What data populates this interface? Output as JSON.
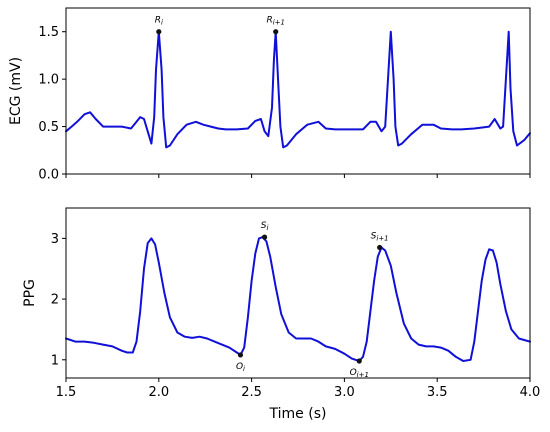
{
  "chart_data": [
    {
      "type": "line",
      "ylabel": "ECG (mV)",
      "xlim": [
        1.5,
        4.0
      ],
      "ylim": [
        0.0,
        1.75
      ],
      "yticks": [
        0.0,
        0.5,
        1.0,
        1.5
      ],
      "ytick_labels": [
        "0.0",
        "0.5",
        "1.0",
        "1.5"
      ],
      "xticks": [
        1.5,
        2.0,
        2.5,
        3.0,
        3.5,
        4.0
      ],
      "show_xtick_labels": false,
      "grid": false,
      "color": "#1010d8",
      "series": [
        {
          "x": [
            1.5,
            1.53,
            1.56,
            1.6,
            1.63,
            1.66,
            1.7,
            1.75,
            1.8,
            1.85,
            1.88,
            1.9,
            1.92,
            1.94,
            1.96,
            1.975,
            1.985,
            2.0,
            2.015,
            2.025,
            2.04,
            2.06,
            2.1,
            2.15,
            2.2,
            2.24,
            2.28,
            2.32,
            2.36,
            2.42,
            2.48,
            2.52,
            2.55,
            2.57,
            2.59,
            2.61,
            2.62,
            2.63,
            2.645,
            2.655,
            2.67,
            2.69,
            2.74,
            2.8,
            2.86,
            2.9,
            2.95,
            3.0,
            3.1,
            3.14,
            3.17,
            3.2,
            3.22,
            3.235,
            3.25,
            3.265,
            3.275,
            3.29,
            3.31,
            3.36,
            3.42,
            3.48,
            3.52,
            3.58,
            3.63,
            3.7,
            3.78,
            3.81,
            3.84,
            3.855,
            3.87,
            3.885,
            3.895,
            3.91,
            3.93,
            3.97,
            4.0
          ],
          "y": [
            0.45,
            0.5,
            0.55,
            0.63,
            0.65,
            0.58,
            0.5,
            0.5,
            0.5,
            0.48,
            0.55,
            0.6,
            0.58,
            0.45,
            0.32,
            0.6,
            1.1,
            1.5,
            1.1,
            0.6,
            0.28,
            0.3,
            0.42,
            0.52,
            0.55,
            0.52,
            0.5,
            0.48,
            0.47,
            0.47,
            0.48,
            0.56,
            0.58,
            0.45,
            0.4,
            0.7,
            1.2,
            1.5,
            0.9,
            0.5,
            0.28,
            0.3,
            0.42,
            0.52,
            0.55,
            0.48,
            0.47,
            0.47,
            0.47,
            0.55,
            0.55,
            0.45,
            0.5,
            1.0,
            1.5,
            1.0,
            0.5,
            0.3,
            0.32,
            0.42,
            0.52,
            0.52,
            0.48,
            0.47,
            0.47,
            0.48,
            0.5,
            0.58,
            0.48,
            0.5,
            1.0,
            1.5,
            0.9,
            0.45,
            0.3,
            0.36,
            0.43
          ]
        }
      ],
      "markers": [
        {
          "x": 2.0,
          "y": 1.5,
          "label": "R_i"
        },
        {
          "x": 2.63,
          "y": 1.5,
          "label": "R_{i+1}"
        }
      ]
    },
    {
      "type": "line",
      "xlabel": "Time (s)",
      "ylabel": "PPG",
      "xlim": [
        1.5,
        4.0
      ],
      "ylim": [
        0.7,
        3.5
      ],
      "yticks": [
        1,
        2,
        3
      ],
      "ytick_labels": [
        "1",
        "2",
        "3"
      ],
      "xticks": [
        1.5,
        2.0,
        2.5,
        3.0,
        3.5,
        4.0
      ],
      "xtick_labels": [
        "1.5",
        "2.0",
        "2.5",
        "3.0",
        "3.5",
        "4.0"
      ],
      "grid": false,
      "color": "#1010d8",
      "series": [
        {
          "x": [
            1.5,
            1.55,
            1.6,
            1.65,
            1.7,
            1.75,
            1.8,
            1.83,
            1.86,
            1.88,
            1.9,
            1.92,
            1.94,
            1.96,
            1.98,
            2.0,
            2.03,
            2.06,
            2.1,
            2.14,
            2.18,
            2.22,
            2.26,
            2.3,
            2.34,
            2.38,
            2.42,
            2.44,
            2.46,
            2.48,
            2.5,
            2.52,
            2.54,
            2.56,
            2.58,
            2.6,
            2.63,
            2.66,
            2.7,
            2.74,
            2.78,
            2.82,
            2.86,
            2.9,
            2.95,
            3.0,
            3.04,
            3.08,
            3.1,
            3.12,
            3.14,
            3.16,
            3.18,
            3.2,
            3.22,
            3.25,
            3.28,
            3.32,
            3.36,
            3.4,
            3.44,
            3.48,
            3.52,
            3.56,
            3.6,
            3.64,
            3.68,
            3.7,
            3.72,
            3.74,
            3.76,
            3.78,
            3.8,
            3.82,
            3.84,
            3.87,
            3.9,
            3.94,
            4.0
          ],
          "y": [
            1.35,
            1.3,
            1.3,
            1.28,
            1.25,
            1.22,
            1.15,
            1.12,
            1.12,
            1.3,
            1.8,
            2.5,
            2.92,
            3.0,
            2.9,
            2.6,
            2.1,
            1.7,
            1.45,
            1.38,
            1.36,
            1.38,
            1.35,
            1.3,
            1.25,
            1.2,
            1.12,
            1.08,
            1.2,
            1.7,
            2.3,
            2.75,
            3.0,
            3.02,
            2.95,
            2.7,
            2.2,
            1.75,
            1.45,
            1.35,
            1.35,
            1.35,
            1.3,
            1.22,
            1.18,
            1.1,
            1.02,
            0.98,
            1.05,
            1.3,
            1.8,
            2.3,
            2.7,
            2.85,
            2.8,
            2.55,
            2.1,
            1.6,
            1.35,
            1.25,
            1.22,
            1.22,
            1.2,
            1.15,
            1.05,
            0.98,
            1.0,
            1.3,
            1.8,
            2.3,
            2.65,
            2.82,
            2.8,
            2.6,
            2.25,
            1.8,
            1.5,
            1.35,
            1.3
          ]
        }
      ],
      "markers": [
        {
          "x": 2.57,
          "y": 3.02,
          "label": "S_i"
        },
        {
          "x": 3.19,
          "y": 2.85,
          "label": "S_{i+1}"
        },
        {
          "x": 2.44,
          "y": 1.08,
          "label": "O_i"
        },
        {
          "x": 3.08,
          "y": 0.98,
          "label": "O_{i+1}"
        }
      ]
    }
  ]
}
